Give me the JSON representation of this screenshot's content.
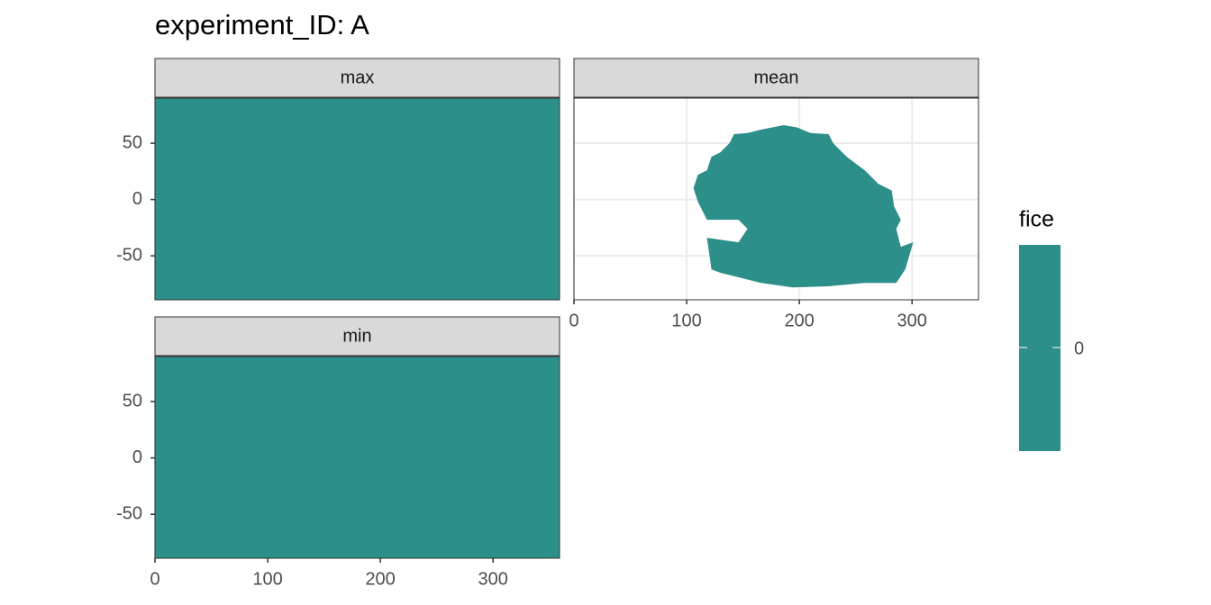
{
  "chart_data": {
    "type": "raster",
    "title": "experiment_ID: A",
    "color": "#2C8F89",
    "grid": true,
    "xlim": [
      0,
      359
    ],
    "ylim": [
      -89,
      90
    ],
    "xticks": [
      0,
      100,
      200,
      300
    ],
    "yticks": [
      -50,
      0,
      50
    ],
    "facets": [
      {
        "name": "max",
        "x": [
          0,
          359,
          359,
          0
        ],
        "y": [
          -89,
          -89,
          90,
          90
        ]
      },
      {
        "name": "mean",
        "x": [
          142,
          154,
          166,
          186,
          198,
          210,
          226,
          230,
          242,
          258,
          270,
          282,
          284,
          290,
          286,
          290,
          301,
          294,
          286,
          258,
          226,
          194,
          166,
          130,
          122,
          118,
          146,
          154,
          146,
          118,
          110,
          106,
          110,
          118,
          122,
          130,
          138
        ],
        "y": [
          58,
          59,
          62,
          66,
          64,
          59,
          58,
          50,
          38,
          26,
          14,
          8,
          -6,
          -18,
          -26,
          -42,
          -38,
          -62,
          -74,
          -74,
          -77,
          -78,
          -74,
          -65,
          -62,
          -34,
          -38,
          -26,
          -18,
          -18,
          -2,
          10,
          22,
          26,
          38,
          42,
          50
        ]
      },
      {
        "name": "min",
        "x": [
          0,
          359,
          359,
          0
        ],
        "y": [
          -89,
          -89,
          90,
          90
        ]
      }
    ],
    "legend": {
      "title": "fice",
      "ticks": [
        0
      ]
    }
  }
}
